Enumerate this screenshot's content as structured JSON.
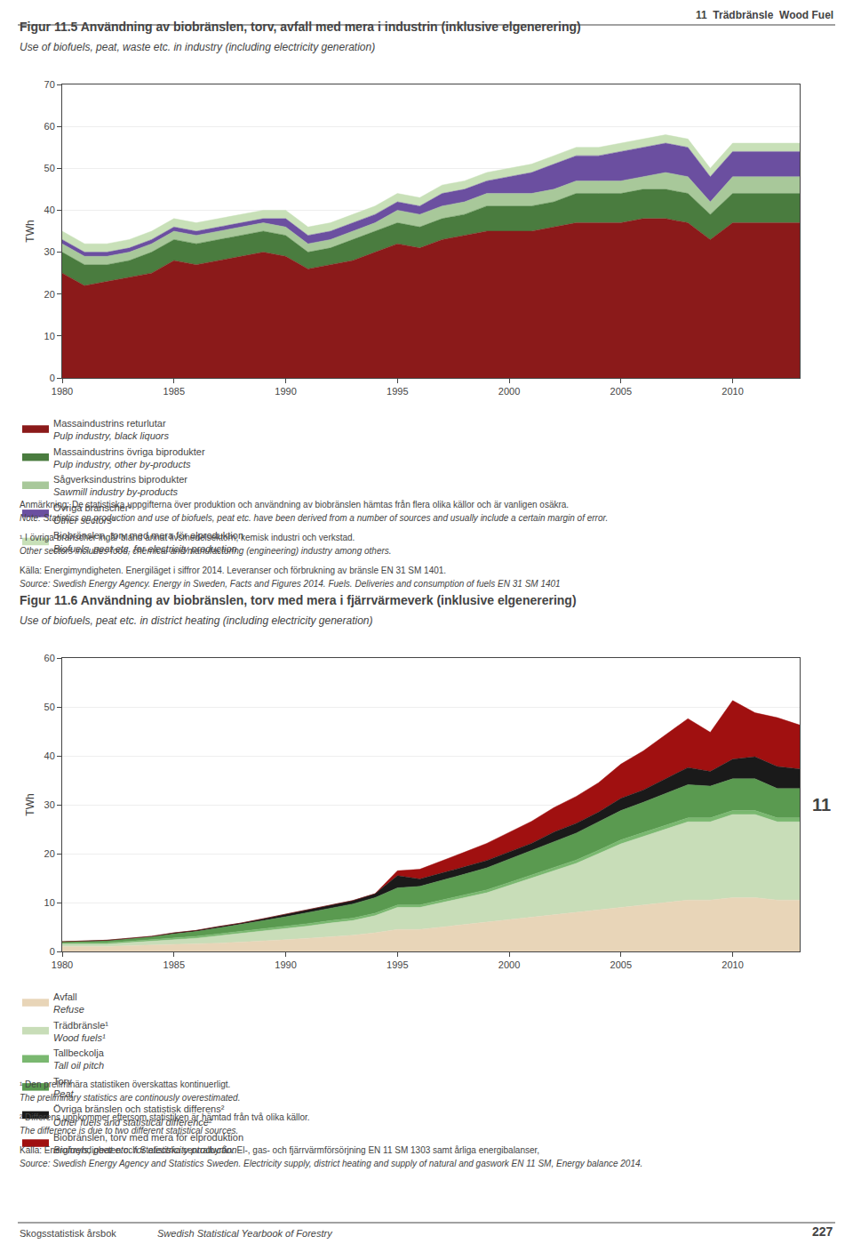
{
  "chart_data": [
    {
      "type": "area",
      "stacked": true,
      "title": "Figur 11.5 Användning av biobränslen, torv, avfall med mera i industrin (inklusive elgenerering)",
      "subtitle": "Use of biofuels, peat, waste etc. in industry (including electricity generation)",
      "ylabel": "TWh",
      "x": [
        1980,
        1981,
        1982,
        1983,
        1984,
        1985,
        1986,
        1987,
        1988,
        1989,
        1990,
        1991,
        1992,
        1993,
        1994,
        1995,
        1996,
        1997,
        1998,
        1999,
        2000,
        2001,
        2002,
        2003,
        2004,
        2005,
        2006,
        2007,
        2008,
        2009,
        2010,
        2011,
        2012,
        2013
      ],
      "xlim": [
        1980,
        2013
      ],
      "xticks": [
        1980,
        1985,
        1990,
        1995,
        2000,
        2005,
        2010
      ],
      "ylim": [
        0,
        70
      ],
      "yticks": [
        0,
        10,
        20,
        30,
        40,
        50,
        60,
        70
      ],
      "grid": "y",
      "series": [
        {
          "name": "Massaindustrins returlutar\nPulp industry, black liquors",
          "color": "#8B1A1A",
          "values": [
            25,
            22,
            23,
            24,
            25,
            28,
            27,
            28,
            29,
            30,
            29,
            26,
            27,
            28,
            30,
            32,
            31,
            33,
            34,
            35,
            35,
            35,
            36,
            37,
            37,
            37,
            38,
            38,
            37,
            33,
            37,
            37,
            37,
            37
          ]
        },
        {
          "name": "Massaindustrins övriga biprodukter\nPulp industry, other by-products",
          "color": "#4A7C3F",
          "values": [
            5,
            5,
            4,
            4,
            5,
            5,
            5,
            5,
            5,
            5,
            5,
            4,
            4,
            5,
            5,
            5,
            5,
            5,
            5,
            6,
            6,
            6,
            6,
            7,
            7,
            7,
            7,
            7,
            7,
            6,
            7,
            7,
            7,
            7
          ]
        },
        {
          "name": "Sågverksindustrins biprodukter\nSawmill industry by-products",
          "color": "#A8C89A",
          "values": [
            2,
            2,
            2,
            2,
            2,
            2,
            2,
            2,
            2,
            2,
            2,
            2,
            2,
            2,
            2,
            3,
            3,
            3,
            3,
            3,
            3,
            3,
            3,
            3,
            3,
            3,
            3,
            4,
            4,
            3,
            4,
            4,
            4,
            4
          ]
        },
        {
          "name": "Övriga branscher¹\nOther sectors¹",
          "color": "#6B4FA0",
          "values": [
            1,
            1,
            1,
            1,
            1,
            1,
            1,
            1,
            1,
            1,
            2,
            2,
            2,
            2,
            2,
            2,
            2,
            3,
            3,
            3,
            4,
            5,
            6,
            6,
            6,
            7,
            7,
            7,
            7,
            6,
            6,
            6,
            6,
            6
          ]
        },
        {
          "name": "Biobränslen, torv med mera för elproduktion\nBiofuels, peat etc. for electricity production",
          "color": "#C8E0B8",
          "values": [
            2,
            2,
            2,
            2,
            2,
            2,
            2,
            2,
            2,
            2,
            2,
            2,
            2,
            2,
            2,
            2,
            2,
            2,
            2,
            2,
            2,
            2,
            2,
            2,
            2,
            2,
            2,
            2,
            2,
            2,
            2,
            2,
            2,
            2
          ]
        }
      ],
      "annotations": [
        "11  Trädbränsle  Wood Fuel",
        "Anmärkning: De statistiska uppgifterna över produktion och användning av biobränslen hämtas från flera olika källor och är vanligen osäkra.",
        "Note: Statistics on production and use of biofuels, peat etc. have been derived from a number of sources and usually include a certain margin of error.",
        "¹ I övriga branscher ingår bland annat livsmedelsektorn, kemisk industri och verkstad.",
        "Other sectors includes food, chemical and manufacturing (engineering) industry among others.",
        "Källa: Energimyndigheten. Energiläget i siffror 2014. Leveranser och förbrukning av bränsle EN 31 SM 1401.",
        "Source: Swedish Energy Agency. Energy in Sweden, Facts and Figures 2014. Fuels. Deliveries and consumption of fuels EN 31 SM 1401"
      ]
    },
    {
      "type": "area",
      "stacked": true,
      "title": "Figur 11.6 Användning av biobränslen, torv med mera i fjärrvärmeverk (inklusive elgenerering)",
      "subtitle": "Use of biofuels, peat etc. in district heating (including electricity generation)",
      "ylabel": "TWh",
      "x": [
        1980,
        1981,
        1982,
        1983,
        1984,
        1985,
        1986,
        1987,
        1988,
        1989,
        1990,
        1991,
        1992,
        1993,
        1994,
        1995,
        1996,
        1997,
        1998,
        1999,
        2000,
        2001,
        2002,
        2003,
        2004,
        2005,
        2006,
        2007,
        2008,
        2009,
        2010,
        2011,
        2012,
        2013
      ],
      "xlim": [
        1980,
        2013
      ],
      "xticks": [
        1980,
        1985,
        1990,
        1995,
        2000,
        2005,
        2010
      ],
      "ylim": [
        0,
        60
      ],
      "yticks": [
        0,
        10,
        20,
        30,
        40,
        50,
        60
      ],
      "grid": "y",
      "series": [
        {
          "name": "Avfall\nRefuse",
          "color": "#E8D5B8",
          "values": [
            1.0,
            1.0,
            1.0,
            1.2,
            1.3,
            1.4,
            1.5,
            1.7,
            1.9,
            2.1,
            2.4,
            2.7,
            3.0,
            3.3,
            3.8,
            4.5,
            4.5,
            5.0,
            5.5,
            6.0,
            6.5,
            7.0,
            7.5,
            8.0,
            8.5,
            9.0,
            9.5,
            10.0,
            10.5,
            10.5,
            11.0,
            11.0,
            10.5,
            10.5
          ]
        },
        {
          "name": "Trädbränsle¹\nWood fuels¹",
          "color": "#C8DDB8",
          "values": [
            0.5,
            0.5,
            0.5,
            0.6,
            0.8,
            1.0,
            1.2,
            1.5,
            1.8,
            2.0,
            2.2,
            2.5,
            2.8,
            3.0,
            3.5,
            4.5,
            4.5,
            5.0,
            5.5,
            6.0,
            7.0,
            8.0,
            9.0,
            10.0,
            11.5,
            13.0,
            14.0,
            15.0,
            16.0,
            16.0,
            17.0,
            17.0,
            16.0,
            16.0
          ]
        },
        {
          "name": "Tallbeckolja\nTall oil pitch",
          "color": "#7AB870",
          "values": [
            0.3,
            0.3,
            0.3,
            0.3,
            0.3,
            0.4,
            0.4,
            0.4,
            0.4,
            0.5,
            0.5,
            0.5,
            0.5,
            0.5,
            0.5,
            0.5,
            0.5,
            0.5,
            0.6,
            0.6,
            0.6,
            0.6,
            0.7,
            0.7,
            0.7,
            0.8,
            0.8,
            0.8,
            0.8,
            0.8,
            0.8,
            0.8,
            0.8,
            0.8
          ]
        },
        {
          "name": "Torv\nPeat",
          "color": "#5A9A50",
          "values": [
            0.2,
            0.3,
            0.4,
            0.5,
            0.6,
            0.8,
            1.0,
            1.2,
            1.4,
            1.7,
            2.0,
            2.3,
            2.6,
            2.9,
            3.2,
            3.5,
            3.8,
            4.0,
            4.2,
            4.5,
            4.8,
            5.0,
            5.2,
            5.5,
            5.8,
            6.0,
            6.2,
            6.5,
            6.8,
            6.5,
            6.5,
            6.5,
            6.0,
            6.0
          ]
        },
        {
          "name": "Övriga bränslen och statistisk differens²\nOther fuels and statistical difference²",
          "color": "#1A1A1A",
          "values": [
            0.0,
            0.0,
            0.1,
            0.1,
            0.1,
            0.2,
            0.2,
            0.3,
            0.3,
            0.4,
            0.5,
            0.5,
            0.6,
            0.7,
            0.8,
            2.5,
            1.5,
            1.5,
            1.5,
            1.5,
            1.5,
            1.5,
            2.0,
            2.0,
            2.0,
            2.5,
            2.5,
            3.0,
            3.5,
            3.0,
            4.0,
            4.5,
            4.5,
            4.0
          ]
        },
        {
          "name": "Biobränslen, torv med mera för elproduktion\nBiofuels, peat etc. for electricity production",
          "color": "#A01010",
          "values": [
            0.0,
            0.0,
            0.0,
            0.0,
            0.0,
            0.0,
            0.0,
            0.0,
            0.0,
            0.0,
            0.0,
            0.0,
            0.0,
            0.0,
            0.0,
            1.0,
            2.0,
            2.5,
            3.0,
            3.5,
            4.0,
            4.5,
            5.0,
            5.5,
            6.0,
            7.0,
            8.0,
            9.0,
            10.0,
            8.0,
            12.0,
            9.0,
            10.0,
            9.0
          ]
        }
      ],
      "annotations": [
        "¹ Den preliminära statistiken överskattas kontinuerligt.",
        "The preliminary statistics are continously overestimated.",
        "² Differens uppkommer eftersom statistiken är hämtad från två olika källor.",
        "The difference is due to two different statistical sources.",
        "Källa: Energimyndigheten och Statistiska centralbyrån. El-, gas- och fjärrvärmförsörjning EN 11 SM 1303 samt årliga energibalanser,",
        "Source: Swedish Energy Agency and Statistics Sweden. Electricity supply, district heating and supply of natural and gaswork EN 11 SM, Energy balance 2014.",
        "11",
        "Skogsstatistisk årsbok",
        "Swedish Statistical Yearbook of Forestry",
        "227"
      ]
    }
  ]
}
